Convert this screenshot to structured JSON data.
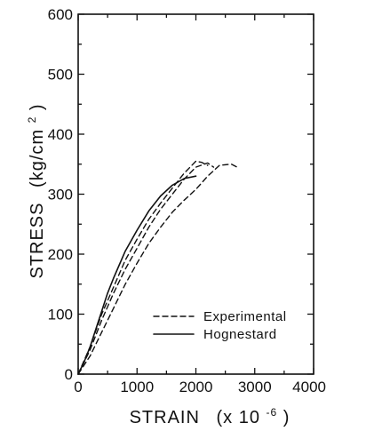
{
  "chart_data": {
    "type": "line",
    "title": "",
    "xlabel": "STRAIN",
    "xlabel_factor": "(x 10",
    "xlabel_exp": "-6",
    "xlabel_close": ")",
    "ylabel_main": "STRESS",
    "ylabel_unit": "(kg/cm",
    "ylabel_exp": "2",
    "ylabel_close": ")",
    "xlim": [
      0,
      4000
    ],
    "ylim": [
      0,
      600
    ],
    "x_ticks": [
      0,
      1000,
      2000,
      3000,
      4000
    ],
    "y_ticks": [
      0,
      100,
      200,
      300,
      400,
      500,
      600
    ],
    "x_tick_labels": [
      "0",
      "1000",
      "2000",
      "3000",
      "4000"
    ],
    "y_tick_labels": [
      "0",
      "100",
      "200",
      "300",
      "400",
      "500",
      "600"
    ],
    "legend_position": "lower-right",
    "series": [
      {
        "name": "Experimental",
        "style": "dashed",
        "points": [
          [
            0,
            0
          ],
          [
            200,
            40
          ],
          [
            400,
            90
          ],
          [
            600,
            135
          ],
          [
            800,
            175
          ],
          [
            1000,
            210
          ],
          [
            1200,
            245
          ],
          [
            1400,
            275
          ],
          [
            1600,
            300
          ],
          [
            1800,
            325
          ],
          [
            2000,
            345
          ],
          [
            2200,
            352
          ],
          [
            2300,
            345
          ]
        ]
      },
      {
        "name": "",
        "style": "dashed",
        "points": [
          [
            0,
            0
          ],
          [
            200,
            45
          ],
          [
            400,
            100
          ],
          [
            600,
            145
          ],
          [
            800,
            190
          ],
          [
            1000,
            225
          ],
          [
            1200,
            258
          ],
          [
            1400,
            285
          ],
          [
            1600,
            310
          ],
          [
            1800,
            335
          ],
          [
            2000,
            355
          ],
          [
            2100,
            353
          ],
          [
            2200,
            348
          ]
        ]
      },
      {
        "name": "",
        "style": "dashed",
        "points": [
          [
            0,
            0
          ],
          [
            200,
            30
          ],
          [
            400,
            70
          ],
          [
            600,
            110
          ],
          [
            800,
            150
          ],
          [
            1000,
            185
          ],
          [
            1200,
            218
          ],
          [
            1400,
            245
          ],
          [
            1600,
            270
          ],
          [
            1800,
            290
          ],
          [
            2000,
            308
          ],
          [
            2200,
            330
          ],
          [
            2400,
            348
          ],
          [
            2600,
            350
          ],
          [
            2700,
            345
          ]
        ]
      },
      {
        "name": "Hognestard",
        "style": "solid",
        "points": [
          [
            0,
            0
          ],
          [
            100,
            20
          ],
          [
            200,
            45
          ],
          [
            300,
            75
          ],
          [
            400,
            105
          ],
          [
            500,
            135
          ],
          [
            600,
            160
          ],
          [
            800,
            205
          ],
          [
            1000,
            240
          ],
          [
            1200,
            272
          ],
          [
            1400,
            297
          ],
          [
            1600,
            315
          ],
          [
            1800,
            326
          ],
          [
            2000,
            330
          ]
        ]
      }
    ]
  }
}
